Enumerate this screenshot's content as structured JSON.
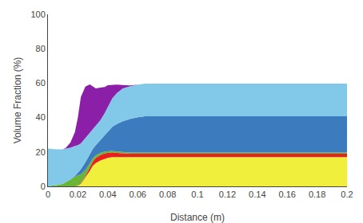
{
  "chart_data": {
    "type": "area",
    "stacked": true,
    "grid": false,
    "xlabel": "Distance (m)",
    "ylabel": "Volume Fraction (%)",
    "xlim": [
      0,
      0.2
    ],
    "ylim": [
      0,
      100
    ],
    "xticks": [
      0,
      0.02,
      0.04,
      0.06,
      0.08,
      0.1,
      0.12,
      0.14,
      0.16,
      0.18,
      0.2
    ],
    "yticks": [
      0,
      20,
      40,
      60,
      80,
      100
    ],
    "x": [
      0.0,
      0.002,
      0.005,
      0.008,
      0.01,
      0.012,
      0.015,
      0.018,
      0.02,
      0.022,
      0.025,
      0.028,
      0.03,
      0.032,
      0.035,
      0.038,
      0.04,
      0.043,
      0.046,
      0.05,
      0.055,
      0.06,
      0.065,
      0.07,
      0.075,
      0.08,
      0.09,
      0.1,
      0.12,
      0.14,
      0.16,
      0.18,
      0.2
    ],
    "series": [
      {
        "color": "#f0f03c",
        "values": [
          0.0,
          0.0,
          0.0,
          0.0,
          0.0,
          0.0,
          0.0,
          0.0,
          0.3,
          1.5,
          5.0,
          9.0,
          12.0,
          13.5,
          15.0,
          16.0,
          16.5,
          17.0,
          17.0,
          17.0,
          17.0,
          17.0,
          17.0,
          17.0,
          17.0,
          17.0,
          17.0,
          17.0,
          17.0,
          17.0,
          17.0,
          17.0,
          17.0
        ]
      },
      {
        "color": "#e82020",
        "values": [
          0.0,
          0.0,
          0.0,
          0.0,
          0.0,
          0.0,
          0.0,
          0.0,
          0.2,
          0.5,
          1.0,
          1.8,
          2.5,
          3.0,
          3.2,
          3.2,
          3.0,
          2.8,
          2.5,
          2.2,
          2.0,
          2.0,
          2.0,
          2.0,
          2.0,
          2.0,
          2.0,
          2.0,
          2.0,
          2.0,
          2.0,
          2.0,
          2.0
        ]
      },
      {
        "color": "#6ab634",
        "values": [
          0.0,
          0.2,
          0.5,
          1.0,
          1.5,
          2.5,
          4.0,
          5.5,
          6.0,
          5.0,
          3.5,
          2.5,
          1.8,
          1.5,
          1.2,
          1.0,
          0.8,
          0.8,
          0.7,
          0.7,
          0.7,
          0.7,
          0.7,
          0.7,
          0.7,
          0.7,
          0.7,
          0.7,
          0.7,
          0.7,
          0.7,
          0.7,
          0.7
        ]
      },
      {
        "color": "#3d7bbf",
        "values": [
          0.0,
          0.0,
          0.0,
          0.0,
          0.0,
          0.0,
          0.0,
          0.5,
          1.5,
          3.0,
          4.5,
          5.5,
          5.5,
          6.0,
          7.5,
          9.5,
          11.5,
          14.0,
          16.0,
          18.0,
          19.5,
          20.5,
          21.0,
          21.0,
          21.0,
          21.0,
          21.0,
          21.0,
          21.0,
          21.0,
          21.0,
          21.0,
          21.0
        ]
      },
      {
        "color": "#82c8e8",
        "values": [
          22.0,
          21.5,
          21.0,
          20.5,
          20.0,
          19.5,
          18.5,
          17.5,
          16.0,
          15.0,
          14.0,
          12.5,
          11.5,
          11.0,
          11.5,
          13.0,
          14.5,
          16.5,
          18.0,
          19.0,
          19.0,
          19.0,
          19.0,
          19.0,
          19.0,
          19.0,
          19.0,
          19.0,
          19.0,
          19.0,
          19.0,
          19.0,
          19.0
        ]
      },
      {
        "color": "#8b1fa8",
        "values": [
          0.0,
          0.0,
          0.0,
          0.0,
          0.0,
          0.5,
          3.0,
          8.0,
          16.0,
          27.0,
          30.0,
          28.0,
          25.0,
          22.0,
          19.0,
          15.0,
          12.5,
          8.0,
          5.0,
          2.0,
          0.5,
          0.0,
          0.0,
          0.0,
          0.0,
          0.0,
          0.0,
          0.0,
          0.0,
          0.0,
          0.0,
          0.0,
          0.0
        ]
      }
    ]
  }
}
